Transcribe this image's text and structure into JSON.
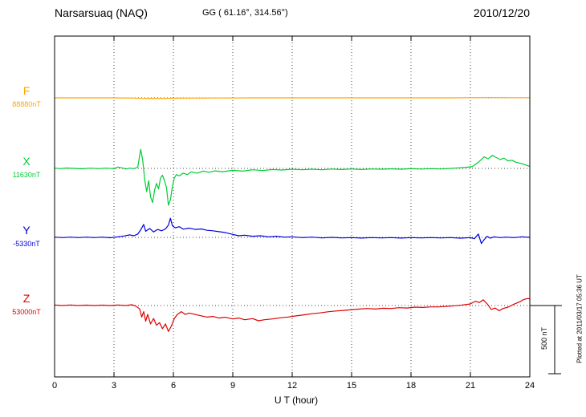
{
  "header": {
    "station": "Narsarsuaq (NAQ)",
    "coords": "GG ( 61.16°, 314.56°)",
    "date": "2010/12/20"
  },
  "axis": {
    "xlabel": "U T (hour)",
    "xmin": 0,
    "xmax": 24,
    "ticks": [
      0,
      3,
      6,
      9,
      12,
      15,
      18,
      21,
      24
    ]
  },
  "scale_bar": {
    "label": "500 nT",
    "value_nT": 500
  },
  "note": "Plotted at 2011/03/17 05:36 UT",
  "chart_data": {
    "type": "line",
    "title": "Narsarsuaq (NAQ) magnetogram 2010/12/20",
    "xlabel": "U T (hour)",
    "x_range": [
      0,
      24
    ],
    "y_unit": "nT (offset from channel baseline)",
    "grid": "dotted vertical every 3 h, dotted horizontal baseline per channel",
    "series": [
      {
        "name": "F",
        "baseline_label": "88880nT",
        "color": "#FFA500",
        "points": [
          [
            0,
            0
          ],
          [
            1,
            0
          ],
          [
            2,
            0
          ],
          [
            3,
            0
          ],
          [
            4,
            -2
          ],
          [
            4.5,
            -4
          ],
          [
            5,
            -3
          ],
          [
            5.5,
            -4
          ],
          [
            6,
            -3
          ],
          [
            7,
            -2
          ],
          [
            8,
            -1
          ],
          [
            9,
            -1
          ],
          [
            10,
            0
          ],
          [
            12,
            0
          ],
          [
            14,
            0
          ],
          [
            16,
            0
          ],
          [
            18,
            0
          ],
          [
            20,
            0
          ],
          [
            21,
            1
          ],
          [
            22,
            2
          ],
          [
            23,
            1
          ],
          [
            24,
            1
          ]
        ]
      },
      {
        "name": "X",
        "baseline_label": "11630nT",
        "color": "#00CC33",
        "points": [
          [
            0,
            2
          ],
          [
            0.3,
            -2
          ],
          [
            0.6,
            3
          ],
          [
            1,
            0
          ],
          [
            1.4,
            -3
          ],
          [
            1.8,
            2
          ],
          [
            2.2,
            -2
          ],
          [
            2.6,
            2
          ],
          [
            3,
            -2
          ],
          [
            3.2,
            10
          ],
          [
            3.4,
            4
          ],
          [
            3.6,
            -4
          ],
          [
            3.8,
            2
          ],
          [
            4,
            -2
          ],
          [
            4.2,
            8
          ],
          [
            4.35,
            140
          ],
          [
            4.45,
            60
          ],
          [
            4.55,
            -80
          ],
          [
            4.65,
            -170
          ],
          [
            4.75,
            -90
          ],
          [
            4.85,
            -210
          ],
          [
            4.95,
            -250
          ],
          [
            5.05,
            -160
          ],
          [
            5.15,
            -110
          ],
          [
            5.25,
            -150
          ],
          [
            5.35,
            -70
          ],
          [
            5.45,
            -50
          ],
          [
            5.55,
            -90
          ],
          [
            5.65,
            -140
          ],
          [
            5.75,
            -270
          ],
          [
            5.85,
            -230
          ],
          [
            5.95,
            -130
          ],
          [
            6.05,
            -70
          ],
          [
            6.15,
            -45
          ],
          [
            6.3,
            -55
          ],
          [
            6.5,
            -35
          ],
          [
            6.7,
            -45
          ],
          [
            6.9,
            -25
          ],
          [
            7.2,
            -35
          ],
          [
            7.5,
            -20
          ],
          [
            7.8,
            -28
          ],
          [
            8.1,
            -18
          ],
          [
            8.5,
            -24
          ],
          [
            9,
            -14
          ],
          [
            9.5,
            -20
          ],
          [
            10,
            -10
          ],
          [
            10.5,
            -16
          ],
          [
            11,
            -8
          ],
          [
            11.5,
            -12
          ],
          [
            12,
            -6
          ],
          [
            12.5,
            -10
          ],
          [
            13,
            -6
          ],
          [
            13.5,
            -10
          ],
          [
            14,
            -5
          ],
          [
            14.5,
            -8
          ],
          [
            15,
            -4
          ],
          [
            15.5,
            -8
          ],
          [
            16,
            -4
          ],
          [
            16.5,
            -6
          ],
          [
            17,
            -3
          ],
          [
            17.5,
            -6
          ],
          [
            18,
            -2
          ],
          [
            18.5,
            -5
          ],
          [
            19,
            -2
          ],
          [
            19.5,
            -4
          ],
          [
            20,
            0
          ],
          [
            20.4,
            4
          ],
          [
            20.8,
            8
          ],
          [
            21.1,
            14
          ],
          [
            21.4,
            45
          ],
          [
            21.7,
            85
          ],
          [
            21.9,
            70
          ],
          [
            22.1,
            95
          ],
          [
            22.3,
            80
          ],
          [
            22.5,
            65
          ],
          [
            22.7,
            75
          ],
          [
            22.9,
            55
          ],
          [
            23.1,
            60
          ],
          [
            23.3,
            45
          ],
          [
            23.6,
            35
          ],
          [
            23.8,
            25
          ],
          [
            24,
            15
          ]
        ]
      },
      {
        "name": "Y",
        "baseline_label": "-5330nT",
        "color": "#0000DD",
        "points": [
          [
            0,
            2
          ],
          [
            0.4,
            -2
          ],
          [
            0.8,
            2
          ],
          [
            1.2,
            -2
          ],
          [
            1.6,
            2
          ],
          [
            2,
            -2
          ],
          [
            2.4,
            2
          ],
          [
            2.8,
            -3
          ],
          [
            3.2,
            4
          ],
          [
            3.5,
            10
          ],
          [
            3.8,
            18
          ],
          [
            4,
            12
          ],
          [
            4.2,
            24
          ],
          [
            4.35,
            55
          ],
          [
            4.5,
            95
          ],
          [
            4.6,
            45
          ],
          [
            4.8,
            65
          ],
          [
            5,
            40
          ],
          [
            5.2,
            58
          ],
          [
            5.4,
            48
          ],
          [
            5.6,
            62
          ],
          [
            5.75,
            90
          ],
          [
            5.85,
            140
          ],
          [
            5.95,
            85
          ],
          [
            6.1,
            70
          ],
          [
            6.3,
            78
          ],
          [
            6.5,
            60
          ],
          [
            6.8,
            68
          ],
          [
            7.1,
            58
          ],
          [
            7.4,
            62
          ],
          [
            7.7,
            52
          ],
          [
            8,
            48
          ],
          [
            8.3,
            42
          ],
          [
            8.6,
            36
          ],
          [
            9,
            22
          ],
          [
            9.3,
            12
          ],
          [
            9.6,
            16
          ],
          [
            10,
            8
          ],
          [
            10.4,
            12
          ],
          [
            10.8,
            4
          ],
          [
            11.2,
            8
          ],
          [
            11.6,
            2
          ],
          [
            12,
            4
          ],
          [
            12.5,
            -2
          ],
          [
            13,
            2
          ],
          [
            13.5,
            -4
          ],
          [
            14,
            0
          ],
          [
            14.5,
            -4
          ],
          [
            15,
            -2
          ],
          [
            15.5,
            -5
          ],
          [
            16,
            -2
          ],
          [
            16.5,
            -4
          ],
          [
            17,
            -2
          ],
          [
            17.5,
            -5
          ],
          [
            18,
            -2
          ],
          [
            18.5,
            -4
          ],
          [
            19,
            -2
          ],
          [
            19.5,
            -4
          ],
          [
            20,
            -2
          ],
          [
            20.5,
            -6
          ],
          [
            21,
            -2
          ],
          [
            21.2,
            -10
          ],
          [
            21.4,
            25
          ],
          [
            21.55,
            -45
          ],
          [
            21.7,
            -15
          ],
          [
            21.85,
            8
          ],
          [
            22,
            -6
          ],
          [
            22.2,
            4
          ],
          [
            22.5,
            -2
          ],
          [
            22.8,
            2
          ],
          [
            23.2,
            -2
          ],
          [
            23.6,
            4
          ],
          [
            24,
            0
          ]
        ]
      },
      {
        "name": "Z",
        "baseline_label": "53000nT",
        "color": "#DD0000",
        "points": [
          [
            0,
            4
          ],
          [
            0.4,
            0
          ],
          [
            0.8,
            4
          ],
          [
            1.2,
            0
          ],
          [
            1.6,
            3
          ],
          [
            2,
            0
          ],
          [
            2.4,
            3
          ],
          [
            2.8,
            0
          ],
          [
            3.2,
            4
          ],
          [
            3.6,
            0
          ],
          [
            3.9,
            6
          ],
          [
            4.1,
            -4
          ],
          [
            4.3,
            -25
          ],
          [
            4.4,
            -85
          ],
          [
            4.5,
            -45
          ],
          [
            4.6,
            -115
          ],
          [
            4.7,
            -65
          ],
          [
            4.85,
            -135
          ],
          [
            5,
            -95
          ],
          [
            5.15,
            -145
          ],
          [
            5.3,
            -125
          ],
          [
            5.45,
            -170
          ],
          [
            5.6,
            -135
          ],
          [
            5.75,
            -190
          ],
          [
            5.9,
            -150
          ],
          [
            6.05,
            -95
          ],
          [
            6.2,
            -65
          ],
          [
            6.4,
            -45
          ],
          [
            6.6,
            -65
          ],
          [
            6.8,
            -55
          ],
          [
            7.1,
            -65
          ],
          [
            7.4,
            -75
          ],
          [
            7.7,
            -85
          ],
          [
            8,
            -80
          ],
          [
            8.3,
            -92
          ],
          [
            8.6,
            -86
          ],
          [
            9,
            -98
          ],
          [
            9.3,
            -92
          ],
          [
            9.6,
            -104
          ],
          [
            10,
            -96
          ],
          [
            10.3,
            -112
          ],
          [
            10.6,
            -104
          ],
          [
            11,
            -98
          ],
          [
            11.4,
            -90
          ],
          [
            11.8,
            -84
          ],
          [
            12.2,
            -76
          ],
          [
            12.6,
            -68
          ],
          [
            13,
            -60
          ],
          [
            13.4,
            -54
          ],
          [
            13.8,
            -46
          ],
          [
            14.2,
            -40
          ],
          [
            14.6,
            -36
          ],
          [
            15,
            -30
          ],
          [
            15.4,
            -26
          ],
          [
            15.8,
            -22
          ],
          [
            16.2,
            -26
          ],
          [
            16.6,
            -20
          ],
          [
            17,
            -22
          ],
          [
            17.4,
            -16
          ],
          [
            17.8,
            -18
          ],
          [
            18.2,
            -12
          ],
          [
            18.6,
            -14
          ],
          [
            19,
            -10
          ],
          [
            19.4,
            -10
          ],
          [
            19.8,
            -6
          ],
          [
            20.2,
            -2
          ],
          [
            20.6,
            4
          ],
          [
            21,
            12
          ],
          [
            21.25,
            32
          ],
          [
            21.45,
            22
          ],
          [
            21.65,
            42
          ],
          [
            21.85,
            12
          ],
          [
            22.05,
            -28
          ],
          [
            22.25,
            -18
          ],
          [
            22.45,
            -38
          ],
          [
            22.65,
            -22
          ],
          [
            22.9,
            -12
          ],
          [
            23.2,
            10
          ],
          [
            23.5,
            28
          ],
          [
            23.7,
            45
          ],
          [
            23.9,
            52
          ],
          [
            24,
            48
          ]
        ]
      }
    ]
  }
}
